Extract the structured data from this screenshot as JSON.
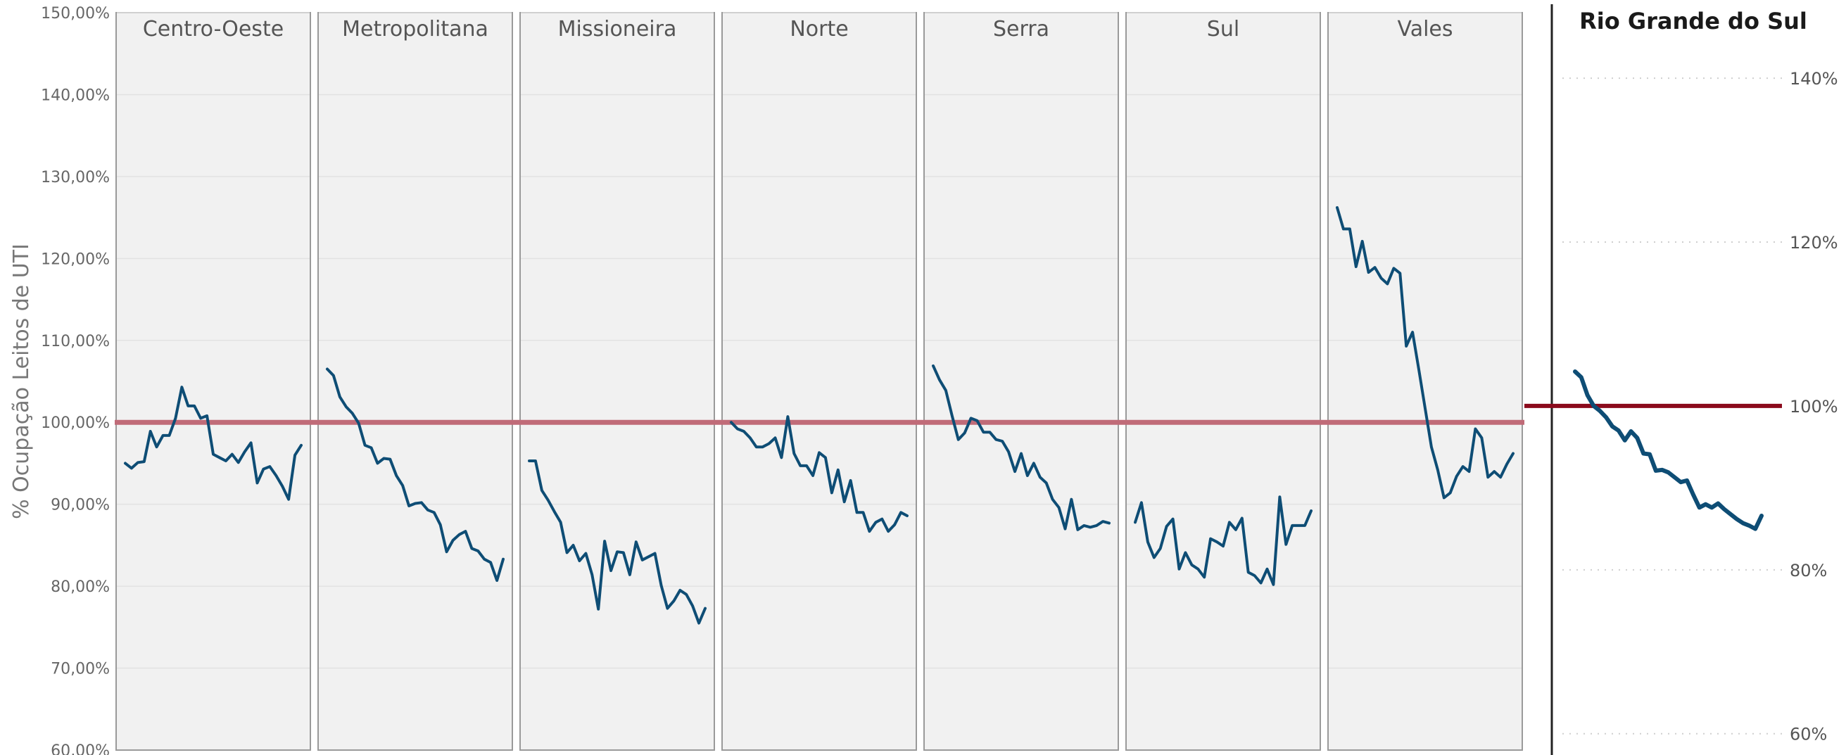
{
  "chart_data": [
    {
      "type": "line",
      "ylabel": "% Ocupação Leitos de UTI",
      "ylim": [
        60,
        150
      ],
      "yticks": [
        "60,00%",
        "70,00%",
        "80,00%",
        "90,00%",
        "100,00%",
        "110,00%",
        "120,00%",
        "130,00%",
        "140,00%",
        "150,00%"
      ],
      "ytick_values": [
        60,
        70,
        80,
        90,
        100,
        110,
        120,
        130,
        140,
        150
      ],
      "reference_line": 100,
      "colors": {
        "line": "#0e4d75",
        "reference": "#c06b78",
        "panel_bg": "#f1f1f1",
        "panel_border": "#9a9a9a"
      },
      "grid": true,
      "series": [
        {
          "name": "Centro-Oeste",
          "values": [
            95.0,
            94.4,
            95.1,
            95.2,
            98.9,
            97.0,
            98.4,
            98.4,
            100.5,
            104.3,
            102.0,
            102.0,
            100.5,
            100.8,
            96.1,
            95.7,
            95.3,
            96.1,
            95.1,
            96.4,
            97.5,
            92.6,
            94.3,
            94.6,
            93.5,
            92.2,
            90.6,
            96.0,
            97.2
          ]
        },
        {
          "name": "Metropolitana",
          "values": [
            106.5,
            105.7,
            103.1,
            101.9,
            101.1,
            99.9,
            97.2,
            96.9,
            95.0,
            95.6,
            95.5,
            93.5,
            92.3,
            89.8,
            90.1,
            90.2,
            89.3,
            89.0,
            87.5,
            84.2,
            85.6,
            86.3,
            86.7,
            84.6,
            84.3,
            83.3,
            82.9,
            80.7,
            83.3
          ]
        },
        {
          "name": "Missioneira",
          "values": [
            95.3,
            95.3,
            91.7,
            90.5,
            89.1,
            87.8,
            84.1,
            85.0,
            83.1,
            84.0,
            81.4,
            77.2,
            85.5,
            81.9,
            84.2,
            84.1,
            81.4,
            85.4,
            83.2,
            83.6,
            84.0,
            80.1,
            77.3,
            78.2,
            79.5,
            79.0,
            77.6,
            75.5,
            77.3
          ]
        },
        {
          "name": "Norte",
          "values": [
            100.0,
            99.2,
            98.9,
            98.1,
            97.0,
            97.0,
            97.4,
            98.1,
            95.7,
            100.7,
            96.2,
            94.7,
            94.7,
            93.5,
            96.3,
            95.7,
            91.4,
            94.2,
            90.3,
            92.9,
            89.0,
            89.0,
            86.7,
            87.8,
            88.2,
            86.7,
            87.5,
            89.0,
            88.6
          ]
        },
        {
          "name": "Serra",
          "values": [
            106.9,
            105.2,
            103.9,
            100.8,
            97.9,
            98.7,
            100.5,
            100.2,
            98.8,
            98.8,
            97.9,
            97.7,
            96.4,
            94.0,
            96.2,
            93.5,
            95.0,
            93.3,
            92.6,
            90.6,
            89.6,
            87.0,
            90.6,
            86.9,
            87.4,
            87.2,
            87.4,
            87.9,
            87.7
          ]
        },
        {
          "name": "Sul",
          "values": [
            87.8,
            90.2,
            85.4,
            83.5,
            84.6,
            87.3,
            88.2,
            82.1,
            84.1,
            82.6,
            82.1,
            81.1,
            85.8,
            85.4,
            84.9,
            87.8,
            86.9,
            88.3,
            81.7,
            81.3,
            80.4,
            82.1,
            80.2,
            90.9,
            85.1,
            87.4,
            87.4,
            87.4,
            89.2
          ]
        },
        {
          "name": "Vales",
          "values": [
            126.2,
            123.6,
            123.6,
            119.0,
            122.1,
            118.3,
            118.9,
            117.6,
            116.9,
            118.8,
            118.2,
            109.3,
            111.0,
            106.4,
            101.7,
            97.0,
            94.2,
            90.8,
            91.4,
            93.4,
            94.6,
            94.0,
            99.2,
            98.1,
            93.3,
            94.0,
            93.3,
            94.9,
            96.2
          ]
        }
      ]
    },
    {
      "type": "line",
      "title": "Rio Grande do Sul",
      "ylim": [
        58,
        148
      ],
      "yticks": [
        "60%",
        "80%",
        "100%",
        "120%",
        "140%"
      ],
      "ytick_values": [
        60,
        80,
        100,
        120,
        140
      ],
      "reference_line": 100,
      "colors": {
        "line": "#0e4d75",
        "reference": "#8b0a1c",
        "grid": "#cfcfcf"
      },
      "grid": true,
      "series": [
        {
          "name": "Rio Grande do Sul",
          "values": [
            104.2,
            103.5,
            101.3,
            100.0,
            99.4,
            98.6,
            97.5,
            97.0,
            95.8,
            96.9,
            96.1,
            94.2,
            94.1,
            92.1,
            92.2,
            91.9,
            91.3,
            90.7,
            90.9,
            89.2,
            87.6,
            88.0,
            87.6,
            88.1,
            87.4,
            86.8,
            86.2,
            85.7,
            85.4,
            85.0,
            86.6
          ]
        }
      ]
    }
  ]
}
